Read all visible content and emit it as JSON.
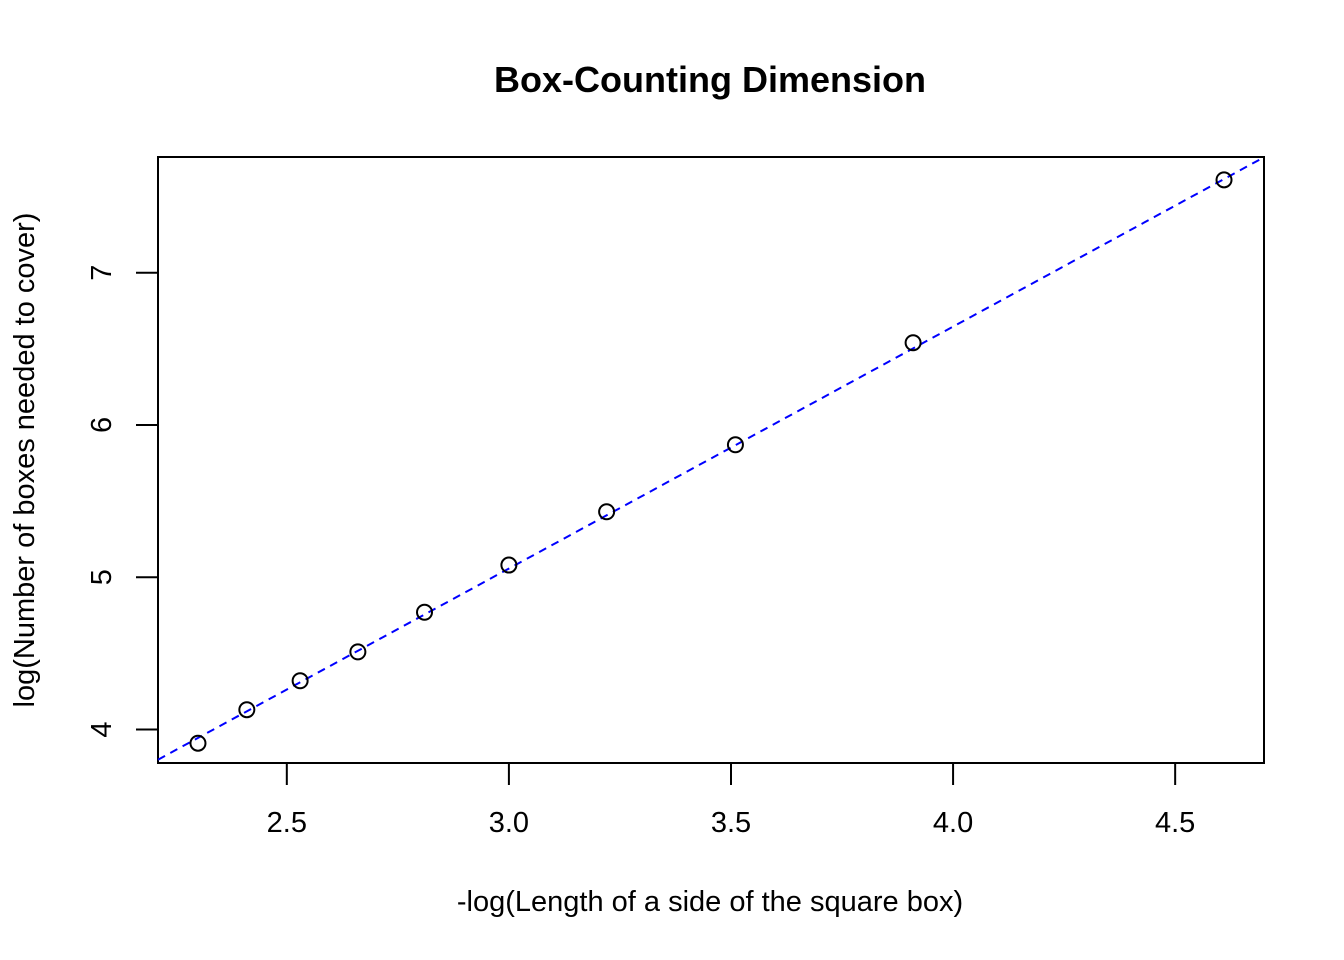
{
  "chart_data": {
    "type": "scatter",
    "title": "Box-Counting Dimension",
    "xlabel": "-log(Length of a side of the square box)",
    "ylabel": "log(Number of boxes needed to cover)",
    "xlim": [
      2.21,
      4.7
    ],
    "ylim": [
      3.78,
      7.76
    ],
    "x_ticks": [
      2.5,
      3.0,
      3.5,
      4.0,
      4.5
    ],
    "x_tick_labels": [
      "2.5",
      "3.0",
      "3.5",
      "4.0",
      "4.5"
    ],
    "y_ticks": [
      4,
      5,
      6,
      7
    ],
    "y_tick_labels": [
      "4",
      "5",
      "6",
      "7"
    ],
    "grid": false,
    "legend": "none",
    "points": [
      {
        "x": 2.3,
        "y": 3.91
      },
      {
        "x": 2.41,
        "y": 4.13
      },
      {
        "x": 2.53,
        "y": 4.32
      },
      {
        "x": 2.66,
        "y": 4.51
      },
      {
        "x": 2.81,
        "y": 4.77
      },
      {
        "x": 3.0,
        "y": 5.08
      },
      {
        "x": 3.22,
        "y": 5.43
      },
      {
        "x": 3.51,
        "y": 5.87
      },
      {
        "x": 3.91,
        "y": 6.54
      },
      {
        "x": 4.61,
        "y": 7.61
      }
    ],
    "fit_line": {
      "style": "dashed",
      "color": "#0000ff",
      "intercept": 0.29,
      "slope": 1.589
    },
    "point_color": "#000000",
    "axis_color": "#000000"
  }
}
